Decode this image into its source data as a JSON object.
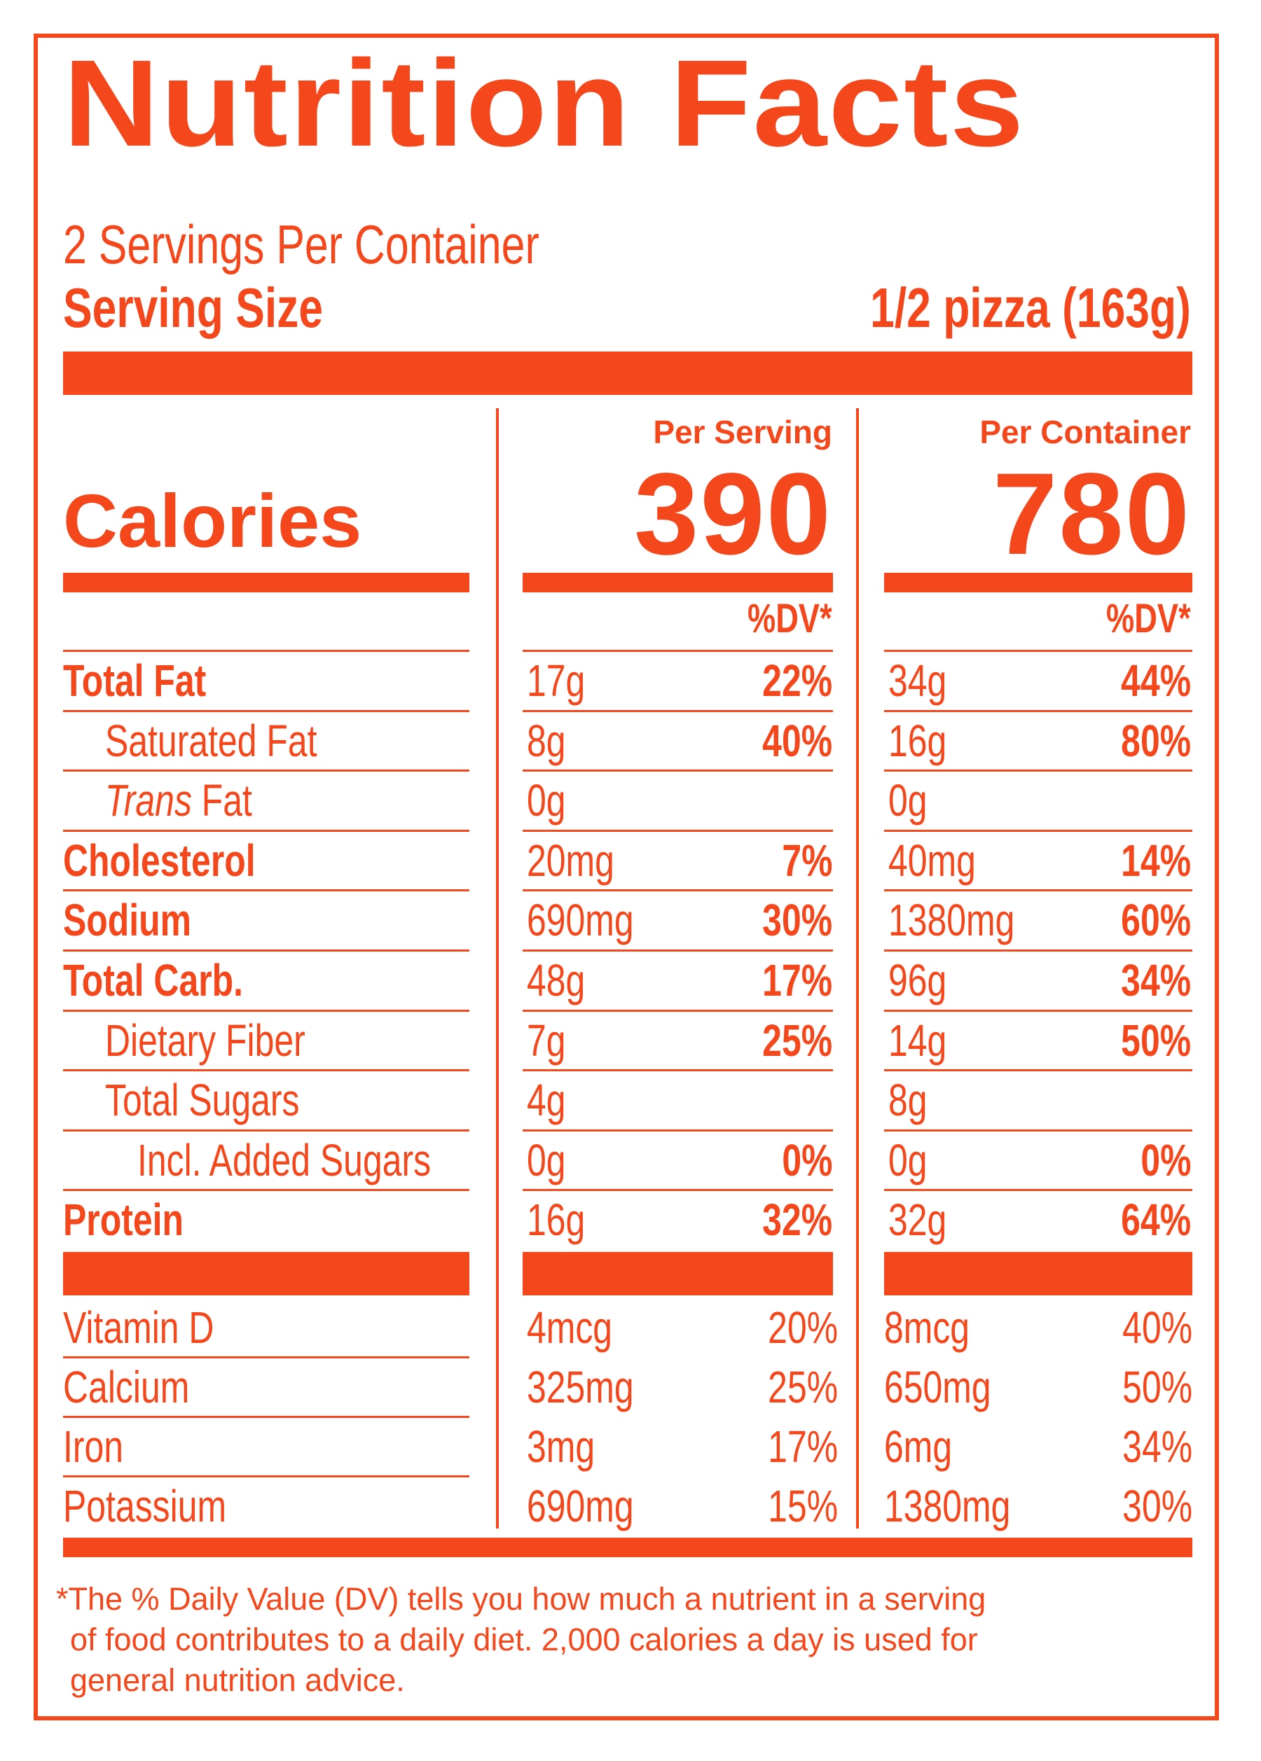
{
  "title": "Nutrition Facts",
  "servings_per_container": "2 Servings Per Container",
  "serving_size_label": "Serving Size",
  "serving_size_value": "1/2 pizza (163g)",
  "calories_label": "Calories",
  "per_serving_label": "Per Serving",
  "per_container_label": "Per Container",
  "calories_per_serving": "390",
  "calories_per_container": "780",
  "dv_header": "%DV*",
  "nutrients": [
    {
      "label": "Total Fat",
      "style": "bold",
      "indent": 0,
      "serving_amount": "17g",
      "serving_dv": "22%",
      "container_amount": "34g",
      "container_dv": "44%"
    },
    {
      "label": "Saturated Fat",
      "style": "normal",
      "indent": 1,
      "serving_amount": "8g",
      "serving_dv": "40%",
      "container_amount": "16g",
      "container_dv": "80%"
    },
    {
      "label_italic": "Trans",
      "label": " Fat",
      "style": "normal",
      "indent": 1,
      "serving_amount": "0g",
      "serving_dv": "",
      "container_amount": "0g",
      "container_dv": ""
    },
    {
      "label": "Cholesterol",
      "style": "bold",
      "indent": 0,
      "serving_amount": "20mg",
      "serving_dv": "7%",
      "container_amount": "40mg",
      "container_dv": "14%"
    },
    {
      "label": "Sodium",
      "style": "bold",
      "indent": 0,
      "serving_amount": "690mg",
      "serving_dv": "30%",
      "container_amount": "1380mg",
      "container_dv": "60%"
    },
    {
      "label": "Total Carb.",
      "style": "bold",
      "indent": 0,
      "serving_amount": "48g",
      "serving_dv": "17%",
      "container_amount": "96g",
      "container_dv": "34%"
    },
    {
      "label": "Dietary Fiber",
      "style": "normal",
      "indent": 1,
      "serving_amount": "7g",
      "serving_dv": "25%",
      "container_amount": "14g",
      "container_dv": "50%"
    },
    {
      "label": "Total Sugars",
      "style": "normal",
      "indent": 1,
      "serving_amount": "4g",
      "serving_dv": "",
      "container_amount": "8g",
      "container_dv": ""
    },
    {
      "label": "Incl. Added Sugars",
      "style": "normal",
      "indent": 2,
      "serving_amount": "0g",
      "serving_dv": "0%",
      "container_amount": "0g",
      "container_dv": "0%"
    },
    {
      "label": "Protein",
      "style": "bold",
      "indent": 0,
      "serving_amount": "16g",
      "serving_dv": "32%",
      "container_amount": "32g",
      "container_dv": "64%"
    }
  ],
  "vitamins": [
    {
      "label": "Vitamin D",
      "serving_amount": "4mcg",
      "serving_dv": "20%",
      "container_amount": "8mcg",
      "container_dv": "40%"
    },
    {
      "label": "Calcium",
      "serving_amount": "325mg",
      "serving_dv": "25%",
      "container_amount": "650mg",
      "container_dv": "50%"
    },
    {
      "label": "Iron",
      "serving_amount": "3mg",
      "serving_dv": "17%",
      "container_amount": "6mg",
      "container_dv": "34%"
    },
    {
      "label": "Potassium",
      "serving_amount": "690mg",
      "serving_dv": "15%",
      "container_amount": "1380mg",
      "container_dv": "30%"
    }
  ],
  "footnote_lines": [
    "*The % Daily Value (DV) tells you how much a nutrient in a serving",
    "of food contributes to a daily diet. 2,000 calories a day is used for",
    "general nutrition advice."
  ],
  "colors": {
    "label_orange": "#f5471c",
    "background": "#ffffff"
  }
}
